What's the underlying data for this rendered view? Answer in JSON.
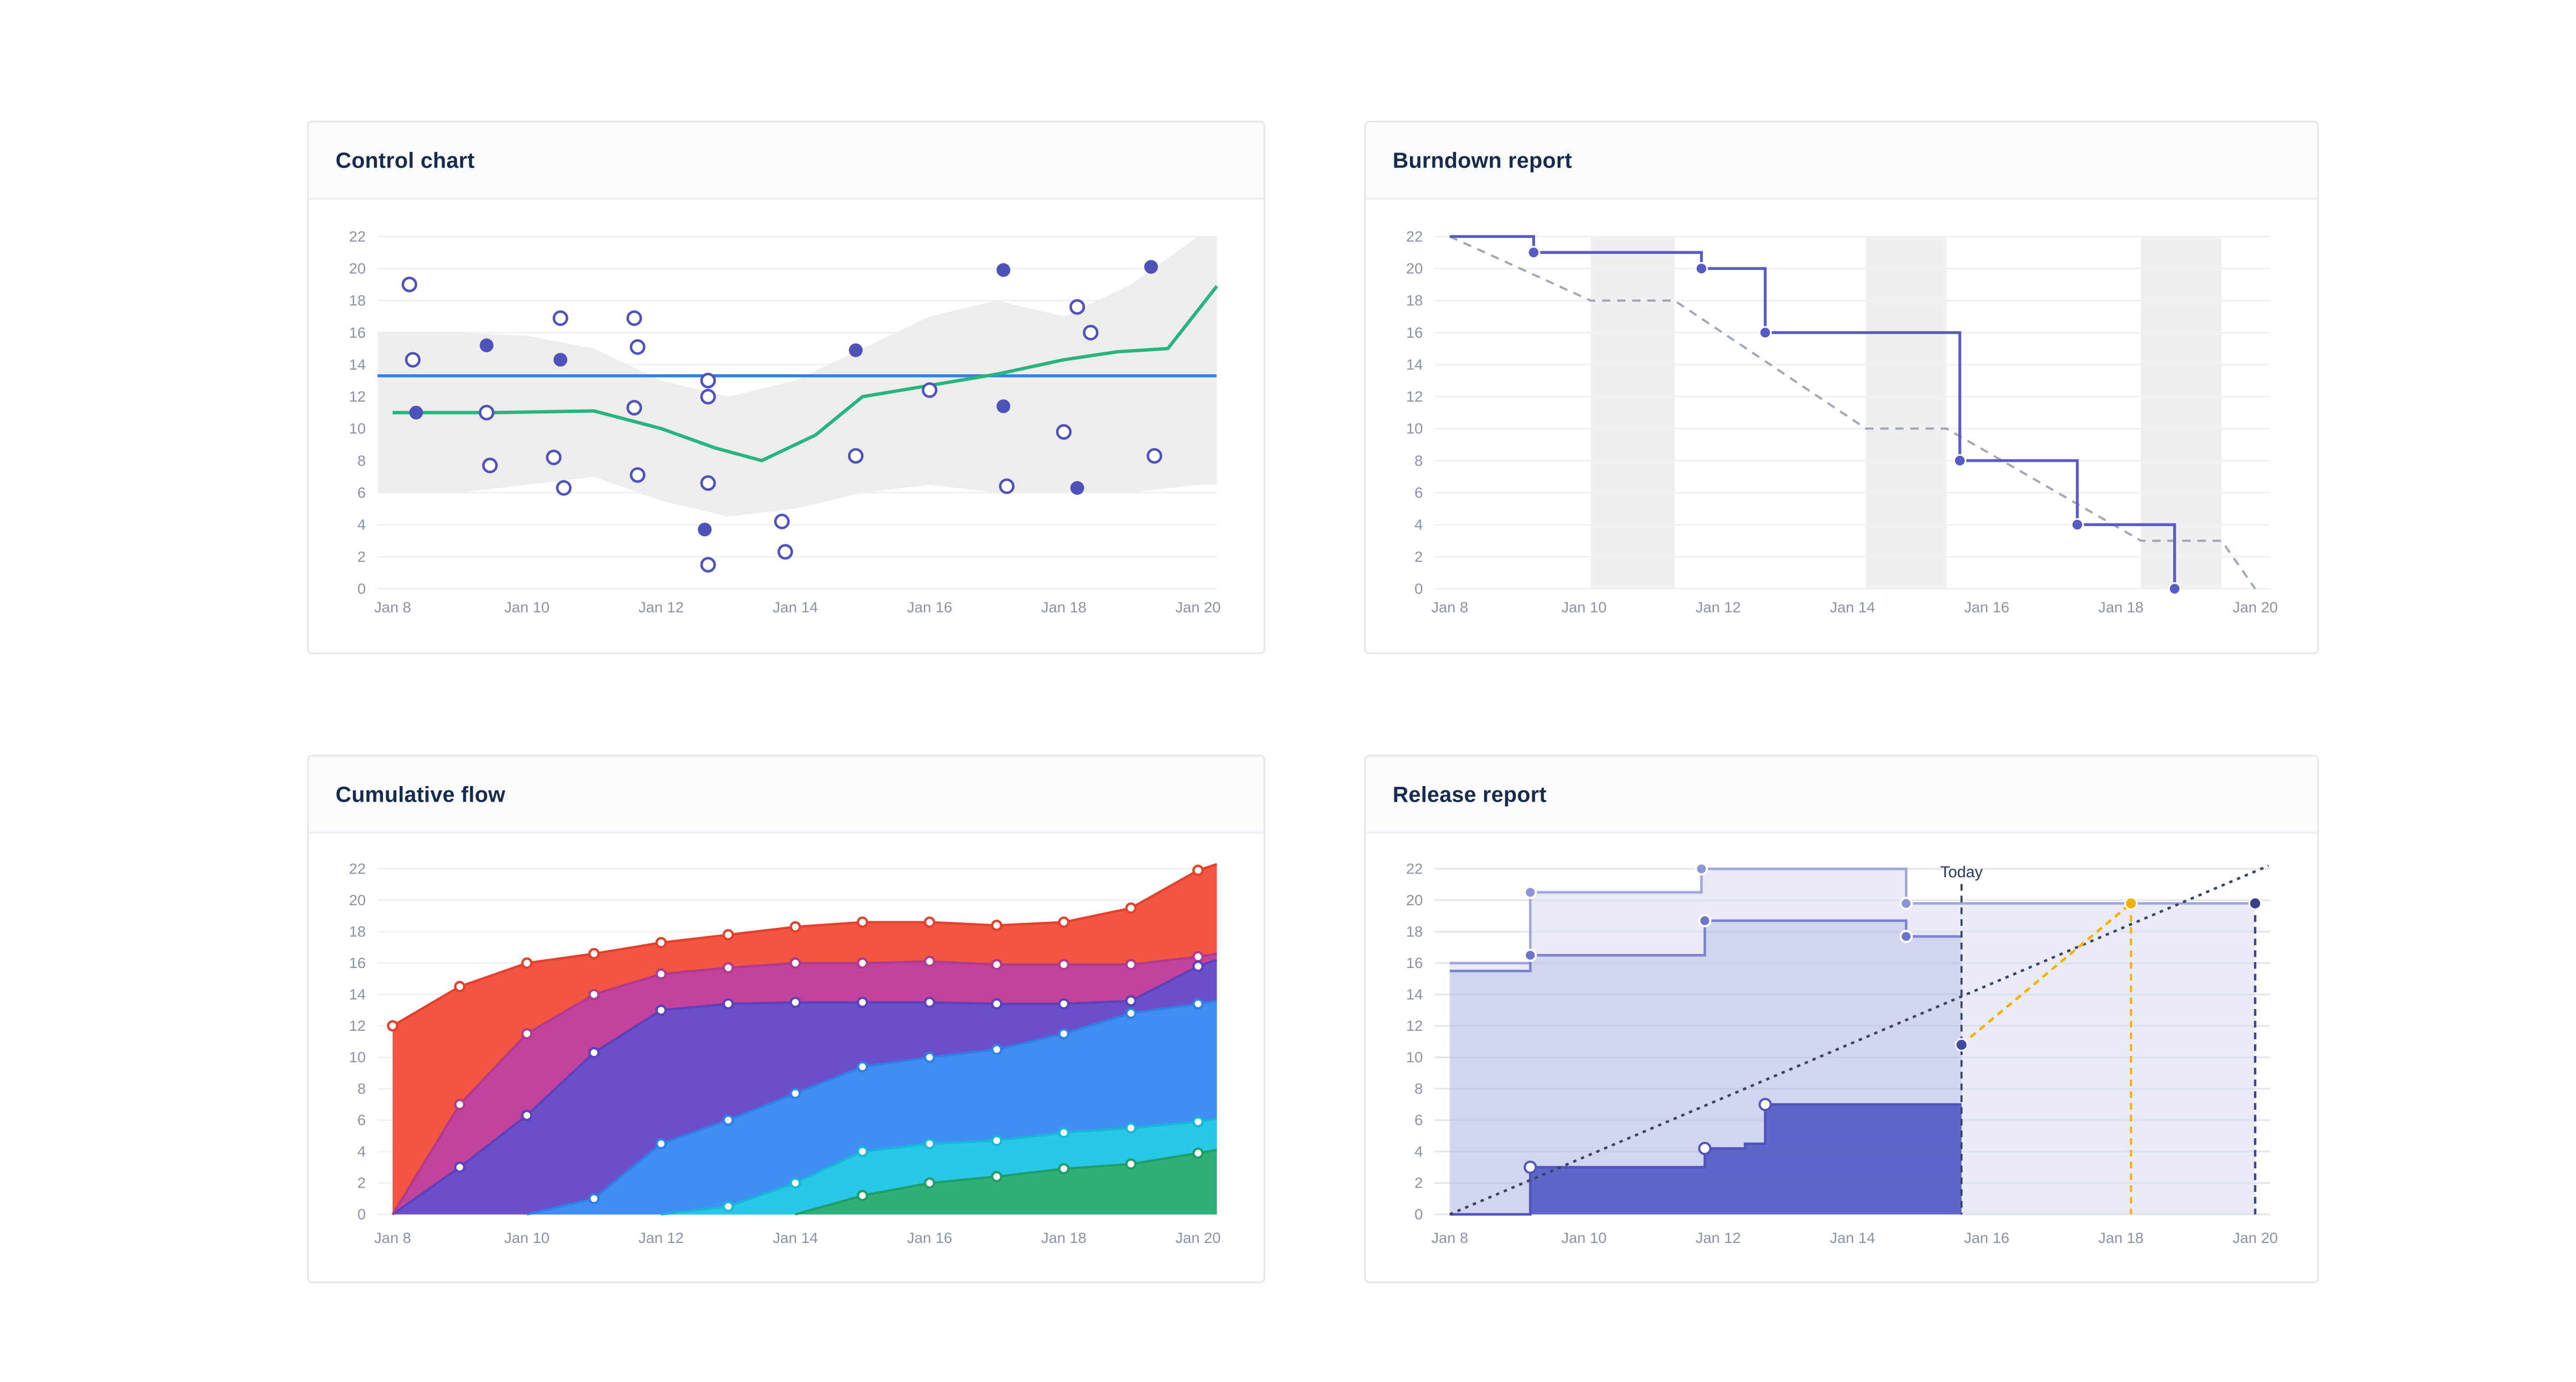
{
  "page": {
    "background": "#ffffff"
  },
  "cards": [
    {
      "title": "Control chart"
    },
    {
      "title": "Burndown report"
    },
    {
      "title": "Cumulative flow"
    },
    {
      "title": "Release report"
    }
  ],
  "axis": {
    "x_tick_labels": [
      "Jan 8",
      "Jan 10",
      "Jan 12",
      "Jan 14",
      "Jan 16",
      "Jan 18",
      "Jan 20"
    ],
    "y_ticks": [
      0,
      2,
      4,
      6,
      8,
      10,
      12,
      14,
      16,
      18,
      20,
      22
    ],
    "label_color": "#8993a4",
    "grid_color": "#f0f1f3"
  },
  "chart_data": [
    {
      "type": "scatter",
      "title": "Control chart",
      "x_unit": "days since Jan 8",
      "xlim": [
        -0.22,
        12.28
      ],
      "ylim": [
        0,
        22
      ],
      "band": {
        "color": "#ededed",
        "x": [
          -0.22,
          0,
          1,
          2,
          3,
          4,
          5,
          6,
          7,
          8,
          9,
          10,
          11,
          12,
          12.28
        ],
        "top": [
          16,
          16,
          16,
          15.8,
          15,
          13,
          12,
          13,
          15,
          17,
          18,
          17,
          19,
          22,
          22
        ],
        "bottom": [
          6,
          6,
          6,
          6.5,
          7,
          5.5,
          4.5,
          5,
          6,
          6.5,
          6,
          6,
          6,
          6.5,
          6.5
        ]
      },
      "average_line": {
        "value": 13.3,
        "color": "#2f80e8"
      },
      "rolling_average": {
        "color": "#26b47f",
        "x": [
          0,
          1.5,
          3,
          4,
          4.8,
          5.5,
          6.3,
          7,
          8,
          9,
          10,
          10.8,
          11.55,
          12.28
        ],
        "y": [
          11,
          11,
          11.1,
          10,
          8.8,
          8,
          9.6,
          12,
          12.7,
          13.4,
          14.3,
          14.8,
          15,
          18.9
        ]
      },
      "points": {
        "fill_color": "#4d53b8",
        "open_fill": "#ffffff",
        "filled": [
          [
            0.35,
            11
          ],
          [
            1.4,
            15.2
          ],
          [
            2.5,
            14.3
          ],
          [
            4.65,
            3.7
          ],
          [
            6.9,
            14.9
          ],
          [
            9.1,
            19.9
          ],
          [
            9.1,
            11.4
          ],
          [
            10.2,
            6.3
          ],
          [
            11.3,
            20.1
          ]
        ],
        "open": [
          [
            0.25,
            19
          ],
          [
            0.3,
            14.3
          ],
          [
            1.4,
            11
          ],
          [
            1.45,
            7.7
          ],
          [
            2.4,
            8.2
          ],
          [
            2.5,
            16.9
          ],
          [
            2.55,
            6.3
          ],
          [
            3.6,
            16.9
          ],
          [
            3.65,
            15.1
          ],
          [
            3.6,
            11.3
          ],
          [
            3.65,
            7.1
          ],
          [
            4.7,
            13
          ],
          [
            4.7,
            12
          ],
          [
            4.7,
            6.6
          ],
          [
            4.7,
            1.5
          ],
          [
            5.8,
            4.2
          ],
          [
            5.85,
            2.3
          ],
          [
            6.9,
            8.3
          ],
          [
            8.0,
            12.4
          ],
          [
            9.15,
            6.4
          ],
          [
            10.0,
            9.8
          ],
          [
            10.2,
            17.6
          ],
          [
            10.4,
            16
          ],
          [
            11.35,
            8.3
          ]
        ]
      }
    },
    {
      "type": "step-line",
      "title": "Burndown report",
      "xlim": [
        -0.22,
        12.28
      ],
      "ylim": [
        0,
        22
      ],
      "weekend_bands": {
        "color": "#efeff1",
        "ranges": [
          [
            2.1,
            3.35
          ],
          [
            6.2,
            7.4
          ],
          [
            10.3,
            11.5
          ]
        ]
      },
      "guideline": {
        "color": "#a0a8b4",
        "x": [
          0,
          2.1,
          3.35,
          6.2,
          7.4,
          10.3,
          11.5,
          12
        ],
        "y": [
          22,
          18,
          18,
          10,
          10,
          3,
          3,
          0
        ]
      },
      "remaining": {
        "color": "#575cc4",
        "steps": [
          [
            0,
            22
          ],
          [
            1.25,
            21
          ],
          [
            3.75,
            20
          ],
          [
            4.7,
            16
          ],
          [
            7.6,
            8
          ],
          [
            9.35,
            4
          ],
          [
            10.8,
            0
          ]
        ]
      }
    },
    {
      "type": "stacked-area",
      "title": "Cumulative flow",
      "xlim": [
        -0.22,
        12.28
      ],
      "ylim": [
        0,
        22
      ],
      "x": [
        0,
        1,
        2,
        3,
        4,
        5,
        6,
        7,
        8,
        9,
        10,
        11,
        12,
        12.28
      ],
      "layers": [
        {
          "name": "layer-6-top",
          "fill": "#f25541",
          "line": "#e4402c",
          "values": [
            12,
            14.5,
            16,
            16.6,
            17.3,
            17.8,
            18.3,
            18.6,
            18.6,
            18.4,
            18.6,
            19.5,
            21.9,
            22.3
          ]
        },
        {
          "name": "layer-5",
          "fill": "#c2439b",
          "line": "#b13a8e",
          "values": [
            0,
            7,
            11.5,
            14,
            15.3,
            15.7,
            16,
            16,
            16.1,
            15.9,
            15.9,
            15.9,
            16.4,
            16.6
          ]
        },
        {
          "name": "layer-4",
          "fill": "#6b4fc8",
          "line": "#5d41bb",
          "values": [
            0,
            3,
            6.3,
            10.3,
            13,
            13.4,
            13.5,
            13.5,
            13.5,
            13.4,
            13.4,
            13.6,
            15.8,
            16.2
          ]
        },
        {
          "name": "layer-3",
          "fill": "#3f8ef3",
          "line": "#2f7fe6",
          "values": [
            0,
            0,
            0,
            1,
            4.5,
            6,
            7.7,
            9.4,
            10,
            10.5,
            11.5,
            12.8,
            13.4,
            13.6
          ]
        },
        {
          "name": "layer-2",
          "fill": "#2ac8e8",
          "line": "#18b7d8",
          "values": [
            0,
            0,
            0,
            0,
            0,
            0.5,
            2,
            4,
            4.5,
            4.7,
            5.2,
            5.5,
            5.9,
            6.1
          ]
        },
        {
          "name": "layer-1-bottom",
          "fill": "#2eb078",
          "line": "#1f9e68",
          "values": [
            0,
            0,
            0,
            0,
            0,
            0,
            0,
            1.2,
            2,
            2.4,
            2.9,
            3.2,
            3.9,
            4.1
          ]
        }
      ]
    },
    {
      "type": "release-burnup",
      "title": "Release report",
      "xlim": [
        -0.22,
        12.35
      ],
      "ylim": [
        0,
        22
      ],
      "today": {
        "x": 7.625,
        "label": "Today",
        "line_color": "#344563"
      },
      "bands": [
        {
          "name": "scope",
          "fill": "#eaebf7",
          "line": "#9fa5de",
          "marker_fill": "#8d94d8",
          "end_x": 12,
          "steps": [
            [
              0,
              16
            ],
            [
              1.2,
              20.5
            ],
            [
              3.75,
              22
            ],
            [
              6.8,
              19.8
            ]
          ],
          "markers": [
            [
              1.2,
              20.5
            ],
            [
              3.75,
              22
            ],
            [
              6.8,
              19.8
            ]
          ]
        },
        {
          "name": "in-progress",
          "fill": "#d2d5f0",
          "line": "#7c83d2",
          "marker_fill": "#6c73cb",
          "end_x": 7.625,
          "steps": [
            [
              0,
              15.5
            ],
            [
              1.2,
              16.5
            ],
            [
              3.8,
              18.7
            ],
            [
              6.8,
              17.7
            ]
          ],
          "markers": [
            [
              1.2,
              16.5
            ],
            [
              3.8,
              18.7
            ],
            [
              6.8,
              17.7
            ]
          ]
        },
        {
          "name": "done",
          "fill": "#5f65c9",
          "line": "#4f55bb",
          "marker_fill": "#ffffff",
          "end_x": 7.625,
          "steps": [
            [
              0,
              0
            ],
            [
              1.2,
              3
            ],
            [
              3.8,
              4.2
            ],
            [
              4.4,
              4.5
            ],
            [
              4.7,
              7
            ]
          ],
          "markers": [
            [
              1.2,
              3
            ],
            [
              3.8,
              4.2
            ],
            [
              4.7,
              7
            ]
          ]
        }
      ],
      "trend_line": {
        "from": [
          0,
          0
        ],
        "to": [
          12.2,
          22.2
        ],
        "color": "#344563",
        "marker_at_today": [
          7.625,
          10.8
        ],
        "marker_fill": "#3f4b9e"
      },
      "projection": {
        "color": "#f2b000",
        "from": [
          7.625,
          10.8
        ],
        "to": [
          10.15,
          19.8
        ],
        "vertical_drop_x": 10.15,
        "marker": [
          10.15,
          19.8
        ]
      },
      "release_marker": {
        "x": 12,
        "y": 19.8,
        "color": "#39418f"
      }
    }
  ]
}
